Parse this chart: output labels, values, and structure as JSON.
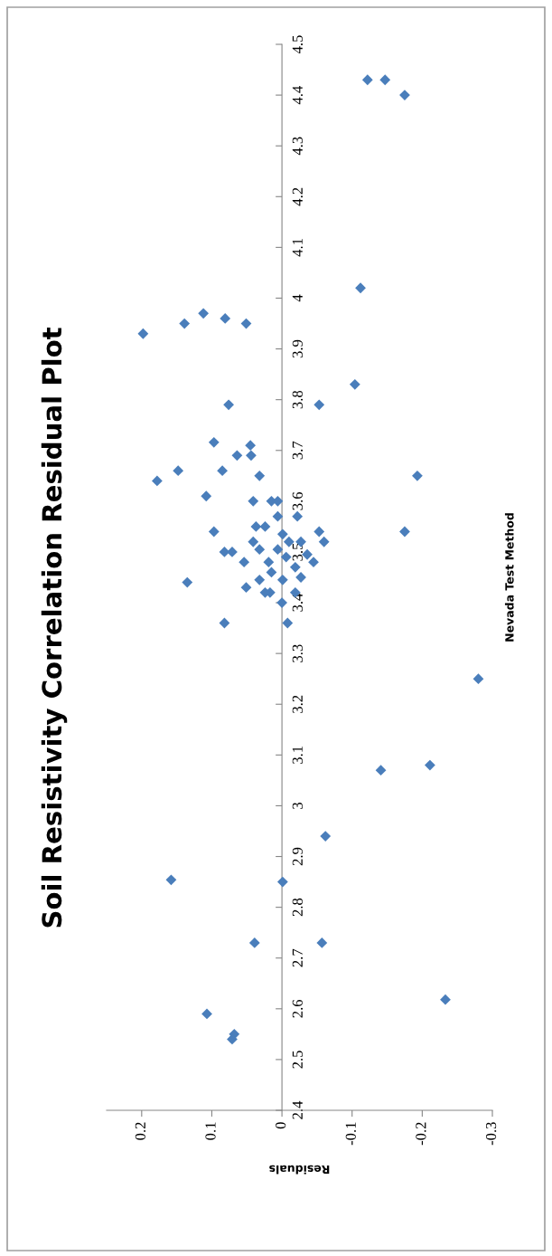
{
  "chart_data": {
    "type": "scatter",
    "title": "Soil Resistivity Correlation Residual Plot",
    "xlabel": "Residuals",
    "ylabel": "Nevada Test Method",
    "ylim": [
      2.4,
      4.5
    ],
    "yticks": [
      2.4,
      2.5,
      2.6,
      2.7,
      2.8,
      2.9,
      3,
      3.1,
      3.2,
      3.3,
      3.4,
      3.5,
      3.6,
      3.7,
      3.8,
      3.9,
      4,
      4.1,
      4.2,
      4.3,
      4.4,
      4.5
    ],
    "xlim": [
      0.25,
      -0.3
    ],
    "xticks": [
      -0.3,
      -0.2,
      -0.1,
      0,
      0.1,
      0.2
    ],
    "marker": "diamond",
    "grid": false,
    "legend": false,
    "series": [
      {
        "color": "#4a7ebb",
        "values": [
          4.43,
          4.43,
          4.4,
          4.02,
          3.83,
          3.79,
          3.93,
          3.95,
          3.97,
          3.96,
          3.95,
          3.79,
          3.716,
          3.71,
          3.69,
          3.69,
          3.66,
          3.66,
          3.64,
          3.65,
          3.61,
          3.6,
          3.6,
          3.6,
          3.57,
          3.65,
          3.54,
          3.54,
          3.52,
          3.54,
          3.5,
          3.5,
          3.44,
          3.36,
          3.36,
          3.4,
          3.42,
          3.42,
          3.43,
          3.48,
          3.55,
          3.55,
          3.57,
          3.535,
          3.52,
          3.495,
          3.48,
          3.505,
          3.48,
          3.505,
          3.49,
          3.47,
          3.46,
          3.445,
          3.445,
          3.42,
          3.45,
          3.52,
          3.52,
          3.07,
          3.08,
          3.25,
          2.618,
          2.854,
          2.85,
          2.94,
          2.73,
          2.73,
          2.59,
          2.55,
          2.54
        ],
        "x": [
          -0.122,
          -0.147,
          -0.175,
          -0.112,
          -0.104,
          -0.053,
          0.198,
          0.139,
          0.112,
          0.081,
          0.051,
          0.076,
          0.097,
          0.045,
          0.044,
          0.064,
          0.148,
          0.085,
          0.178,
          0.032,
          0.108,
          0.041,
          0.015,
          0.006,
          -0.022,
          -0.193,
          -0.175,
          -0.053,
          -0.06,
          0.097,
          0.082,
          0.071,
          0.135,
          0.082,
          -0.008,
          0.0,
          -0.019,
          0.017,
          0.051,
          0.054,
          0.037,
          0.024,
          0.006,
          -0.001,
          -0.027,
          -0.036,
          -0.045,
          0.032,
          0.019,
          0.006,
          -0.006,
          -0.019,
          0.015,
          0.032,
          -0.001,
          0.024,
          -0.027,
          0.041,
          -0.01,
          -0.141,
          -0.211,
          -0.28,
          -0.233,
          0.158,
          -0.001,
          -0.062,
          0.039,
          -0.057,
          0.107,
          0.068,
          0.071
        ]
      }
    ]
  }
}
